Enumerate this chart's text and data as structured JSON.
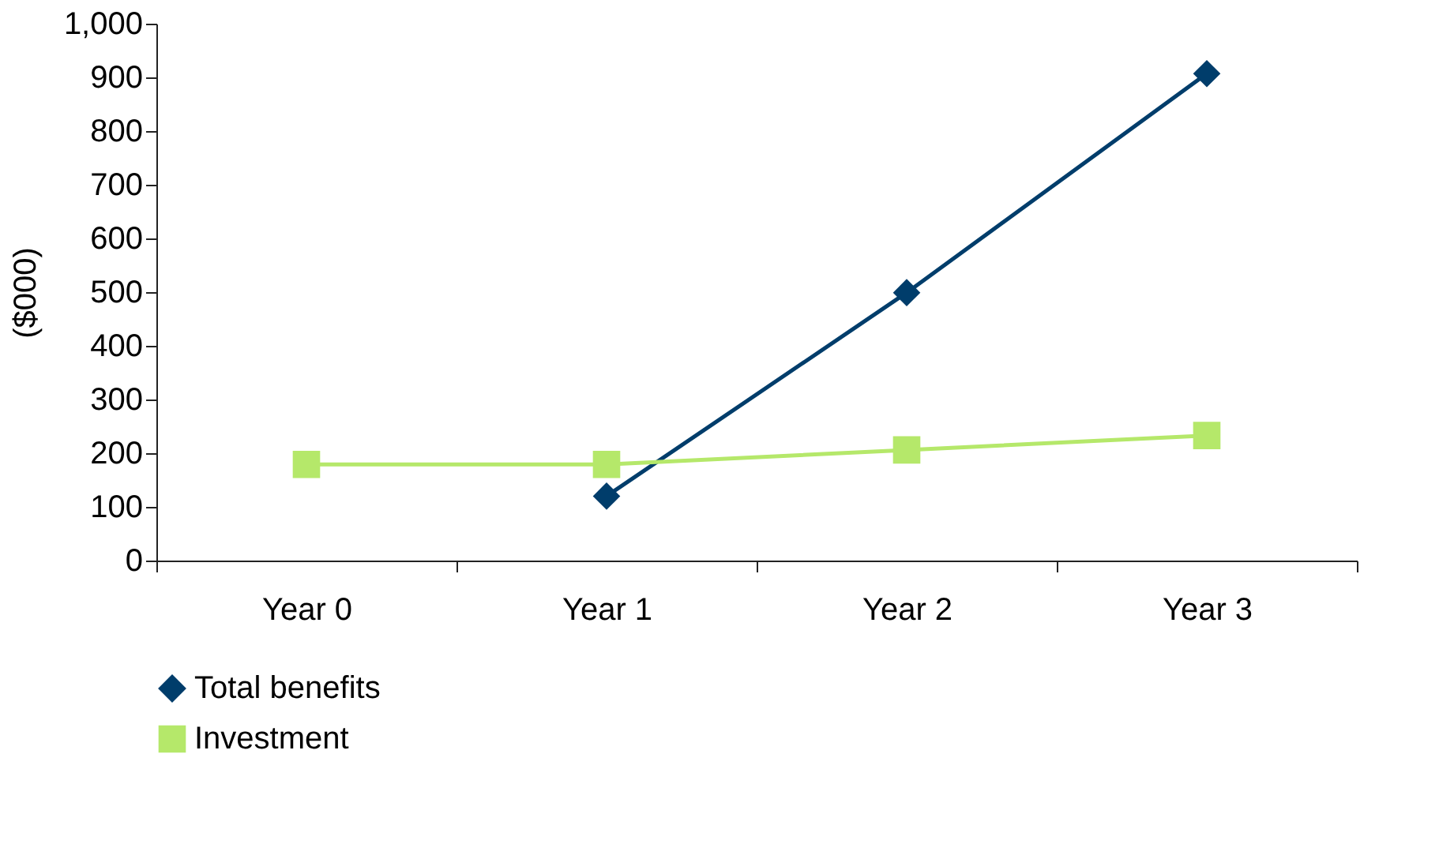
{
  "chart_data": {
    "type": "line",
    "ylabel": "($000)",
    "categories": [
      "Year 0",
      "Year 1",
      "Year 2",
      "Year 3"
    ],
    "series": [
      {
        "name": "Total benefits",
        "color": "#003d6b",
        "marker": "diamond",
        "values": [
          null,
          120,
          499,
          907
        ]
      },
      {
        "name": "Investment",
        "color": "#b5e86a",
        "marker": "square",
        "values": [
          179,
          179,
          206,
          233
        ]
      }
    ],
    "ylim": [
      0,
      1000
    ],
    "yticks": [
      0,
      100,
      200,
      300,
      400,
      500,
      600,
      700,
      800,
      900,
      {
        "value": 1000,
        "label": "1,000"
      }
    ],
    "grid": false,
    "legend": "bottom left",
    "line_style": "solid"
  }
}
